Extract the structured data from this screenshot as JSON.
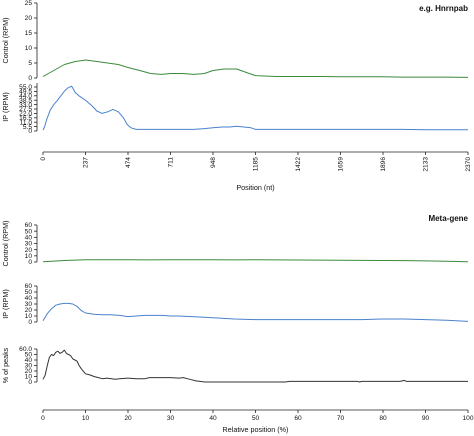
{
  "colors": {
    "control": "#3c8a3c",
    "ip": "#4a82cc",
    "peaks": "#333333"
  },
  "chart_data": [
    {
      "type": "line",
      "title": "e.g. Hnrnpab",
      "xlabel": "Position (nt)",
      "x_ticks": [
        "0",
        "237",
        "474",
        "711",
        "948",
        "1185",
        "1422",
        "1659",
        "1896",
        "2133",
        "2370"
      ],
      "xlim": [
        0,
        2370
      ],
      "panels": [
        {
          "ylabel": "Control (RPM)",
          "y_ticks": [
            "0",
            "5",
            "10",
            "15",
            "20",
            "25"
          ],
          "ylim": [
            0,
            25
          ],
          "series": [
            {
              "color_key": "control",
              "x": [
                0,
                60,
                120,
                180,
                240,
                300,
                360,
                420,
                474,
                540,
                600,
                660,
                711,
                780,
                840,
                900,
                948,
                1010,
                1080,
                1150,
                1185,
                1300,
                1422,
                1550,
                1659,
                1780,
                1896,
                2000,
                2133,
                2250,
                2370
              ],
              "y": [
                0.5,
                2.5,
                4.5,
                5.5,
                6.0,
                5.5,
                5.0,
                4.5,
                3.5,
                2.5,
                1.5,
                1.2,
                1.5,
                1.5,
                1.2,
                1.5,
                2.5,
                3.0,
                3.0,
                1.5,
                0.8,
                0.5,
                0.5,
                0.5,
                0.4,
                0.4,
                0.4,
                0.3,
                0.3,
                0.3,
                0.2
              ]
            }
          ]
        },
        {
          "ylabel": "IP (RPM)",
          "y_ticks": [
            "0",
            "5.5",
            "11.0",
            "16.5",
            "22.0",
            "27.5",
            "33.0",
            "38.5",
            "44.0",
            "49.5",
            "55.0"
          ],
          "ylim": [
            0,
            60
          ],
          "series": [
            {
              "color_key": "ip",
              "x": [
                0,
                10,
                20,
                40,
                60,
                80,
                100,
                120,
                140,
                160,
                180,
                200,
                220,
                240,
                260,
                280,
                300,
                330,
                360,
                390,
                420,
                450,
                470,
                490,
                520,
                560,
                600,
                660,
                711,
                780,
                840,
                900,
                948,
                1000,
                1040,
                1080,
                1120,
                1160,
                1185,
                1250,
                1300,
                1422,
                1550,
                1659,
                1780,
                1896,
                2000,
                2133,
                2250,
                2370
              ],
              "y": [
                1,
                6,
                14,
                26,
                33,
                38,
                44,
                50,
                54,
                56,
                48,
                44,
                41,
                38,
                34,
                30,
                25,
                22,
                24,
                27,
                24,
                16,
                8,
                4,
                2,
                2,
                2,
                2,
                2,
                2,
                2,
                3,
                4,
                5,
                5,
                6,
                5,
                4,
                2,
                2,
                2,
                2,
                2,
                2,
                2,
                2,
                2,
                1.5,
                1.5,
                1.5
              ]
            }
          ]
        }
      ]
    },
    {
      "type": "line",
      "title": "Meta-gene",
      "xlabel": "Relative position (%)",
      "x_ticks": [
        "0",
        "10",
        "20",
        "30",
        "40",
        "50",
        "60",
        "70",
        "80",
        "90",
        "100"
      ],
      "xlim": [
        0,
        100
      ],
      "panels": [
        {
          "ylabel": "Control (RPM)",
          "y_ticks": [
            "0",
            "10",
            "20",
            "30",
            "40",
            "50",
            "60"
          ],
          "ylim": [
            0,
            60
          ],
          "series": [
            {
              "color_key": "control",
              "x": [
                0,
                5,
                10,
                15,
                20,
                25,
                30,
                35,
                40,
                45,
                50,
                55,
                60,
                65,
                70,
                75,
                80,
                85,
                90,
                95,
                100
              ],
              "y": [
                0.5,
                2.5,
                3.5,
                3.8,
                3.5,
                3.4,
                3.6,
                3.8,
                3.6,
                3.4,
                3.5,
                3.4,
                3.3,
                3.1,
                2.9,
                2.6,
                2.4,
                2.2,
                1.8,
                1.2,
                0.5
              ]
            }
          ]
        },
        {
          "ylabel": "IP (RPM)",
          "y_ticks": [
            "0",
            "10",
            "20",
            "30",
            "40",
            "50",
            "60"
          ],
          "ylim": [
            0,
            60
          ],
          "series": [
            {
              "color_key": "ip",
              "x": [
                0,
                1,
                2,
                3,
                4,
                5,
                6,
                7,
                8,
                9,
                10,
                12,
                14,
                16,
                18,
                20,
                22,
                24,
                26,
                28,
                30,
                32,
                35,
                38,
                40,
                45,
                50,
                55,
                60,
                65,
                70,
                75,
                80,
                85,
                90,
                95,
                100
              ],
              "y": [
                2,
                14,
                22,
                28,
                30,
                31,
                31,
                30,
                26,
                19,
                15,
                13,
                12,
                12,
                11,
                9,
                10,
                11,
                11,
                11,
                10,
                10,
                9,
                8,
                7,
                5,
                4,
                4,
                4,
                4,
                4,
                4,
                5,
                5,
                4,
                3,
                1
              ]
            }
          ]
        },
        {
          "ylabel": "% of peaks",
          "y_ticks": [
            "0",
            "10",
            "20",
            "30",
            "40",
            "50",
            "60.0"
          ],
          "ylim": [
            0,
            60
          ],
          "series": [
            {
              "color_key": "peaks",
              "x": [
                0,
                0.5,
                1,
                1.5,
                2,
                2.5,
                3,
                3.5,
                4,
                4.5,
                5,
                5.5,
                6,
                6.5,
                7,
                7.5,
                8,
                8.5,
                9,
                10,
                11,
                12,
                13,
                14,
                15,
                17,
                18,
                20,
                22,
                24,
                25,
                28,
                30,
                32,
                33,
                34,
                35,
                36,
                37,
                38,
                40,
                45,
                50,
                55,
                57,
                58,
                60,
                65,
                70,
                74,
                74.5,
                75,
                80,
                84,
                85,
                85.5,
                90,
                95,
                100
              ],
              "y": [
                5,
                12,
                30,
                45,
                50,
                48,
                54,
                56,
                52,
                54,
                58,
                52,
                50,
                48,
                42,
                40,
                38,
                30,
                24,
                15,
                13,
                10,
                8,
                6,
                7,
                5,
                6,
                7,
                6,
                6,
                8,
                8,
                8,
                7,
                8,
                6,
                4,
                2,
                1,
                0,
                0,
                0,
                0,
                0,
                0,
                1,
                1,
                1,
                1,
                1,
                0,
                1,
                1,
                1,
                3,
                1,
                1,
                1,
                1
              ]
            }
          ]
        }
      ]
    }
  ]
}
